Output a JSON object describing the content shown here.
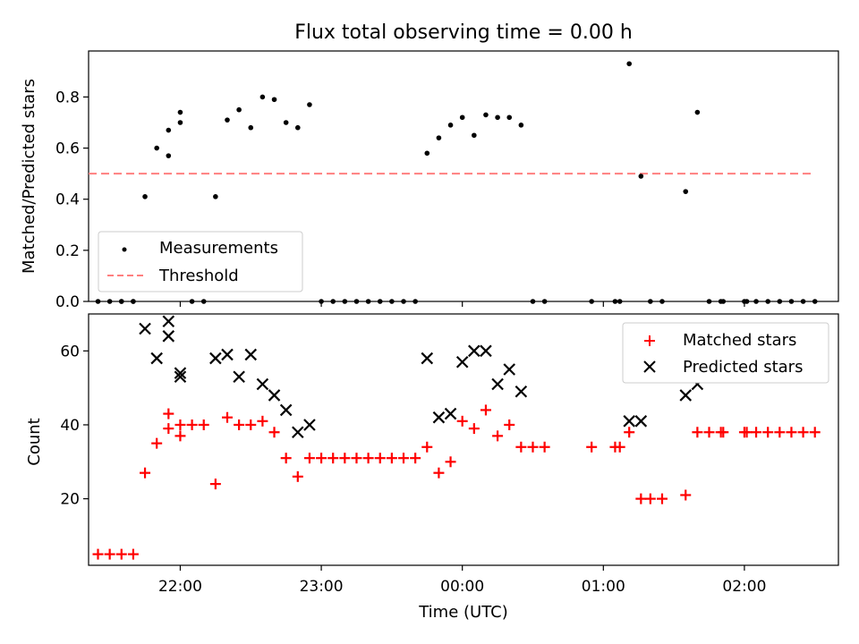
{
  "chart_data": [
    {
      "type": "scatter",
      "title": "Flux total observing time = 0.00 h",
      "xlabel": "",
      "ylabel": "Matched/Predicted stars",
      "xlim": [
        "21:21",
        "02:40"
      ],
      "ylim": [
        0,
        0.98
      ],
      "yticks": [
        "0.0",
        "0.2",
        "0.4",
        "0.6",
        "0.8"
      ],
      "legend_position": "lower-left",
      "colors": {
        "measurements": "#000000",
        "threshold": "#ff7f7f"
      },
      "series": [
        {
          "name": "Measurements",
          "points": [
            [
              "21:25",
              0.0
            ],
            [
              "21:30",
              0.0
            ],
            [
              "21:35",
              0.0
            ],
            [
              "21:40",
              0.0
            ],
            [
              "21:35",
              0.0
            ],
            [
              "21:40",
              0.0
            ],
            [
              "21:45",
              0.41
            ],
            [
              "21:50",
              0.6
            ],
            [
              "21:55",
              0.57
            ],
            [
              "22:00",
              0.7
            ],
            [
              "21:55",
              0.67
            ],
            [
              "22:00",
              0.74
            ],
            [
              "22:05",
              0.0
            ],
            [
              "22:10",
              0.0
            ],
            [
              "22:15",
              0.41
            ],
            [
              "22:20",
              0.71
            ],
            [
              "22:25",
              0.75
            ],
            [
              "22:30",
              0.68
            ],
            [
              "22:35",
              0.8
            ],
            [
              "22:40",
              0.79
            ],
            [
              "22:45",
              0.7
            ],
            [
              "22:50",
              0.68
            ],
            [
              "22:55",
              0.77
            ],
            [
              "23:00",
              0.0
            ],
            [
              "23:05",
              0.0
            ],
            [
              "23:10",
              0.0
            ],
            [
              "23:15",
              0.0
            ],
            [
              "23:20",
              0.0
            ],
            [
              "23:25",
              0.0
            ],
            [
              "23:30",
              0.0
            ],
            [
              "23:35",
              0.0
            ],
            [
              "23:40",
              0.0
            ],
            [
              "23:45",
              0.58
            ],
            [
              "23:50",
              0.64
            ],
            [
              "23:55",
              0.69
            ],
            [
              "00:00",
              0.72
            ],
            [
              "00:05",
              0.65
            ],
            [
              "00:10",
              0.73
            ],
            [
              "00:15",
              0.72
            ],
            [
              "00:20",
              0.72
            ],
            [
              "00:25",
              0.69
            ],
            [
              "00:30",
              0.0
            ],
            [
              "00:35",
              0.0
            ],
            [
              "00:55",
              0.0
            ],
            [
              "01:05",
              0.0
            ],
            [
              "01:07",
              0.0
            ],
            [
              "01:11",
              0.93
            ],
            [
              "01:16",
              0.49
            ],
            [
              "01:20",
              0.0
            ],
            [
              "01:25",
              0.0
            ],
            [
              "01:35",
              0.43
            ],
            [
              "01:40",
              0.74
            ],
            [
              "01:45",
              0.0
            ],
            [
              "01:50",
              0.0
            ],
            [
              "01:51",
              0.0
            ],
            [
              "02:00",
              0.0
            ],
            [
              "02:01",
              0.0
            ],
            [
              "02:05",
              0.0
            ],
            [
              "02:10",
              0.0
            ],
            [
              "02:15",
              0.0
            ],
            [
              "02:20",
              0.0
            ],
            [
              "02:25",
              0.0
            ],
            [
              "02:30",
              0.0
            ]
          ]
        },
        {
          "name": "Threshold",
          "style": "dashed",
          "points": [
            [
              "21:21",
              0.5
            ],
            [
              "02:30",
              0.5
            ]
          ]
        }
      ]
    },
    {
      "type": "scatter",
      "title": "",
      "xlabel": "Time (UTC)",
      "ylabel": "Count",
      "xlim": [
        "21:21",
        "02:40"
      ],
      "ylim": [
        2,
        70
      ],
      "yticks": [
        "20",
        "40",
        "60"
      ],
      "xticks": [
        "22:00",
        "23:00",
        "00:00",
        "01:00",
        "02:00"
      ],
      "legend_position": "top-right",
      "colors": {
        "matched": "#ff0000",
        "predicted": "#000000"
      },
      "series": [
        {
          "name": "Matched stars",
          "marker": "plus",
          "points": [
            [
              "21:25",
              5
            ],
            [
              "21:30",
              5
            ],
            [
              "21:35",
              5
            ],
            [
              "21:40",
              5
            ],
            [
              "21:45",
              27
            ],
            [
              "21:50",
              35
            ],
            [
              "21:55",
              39
            ],
            [
              "22:00",
              37
            ],
            [
              "21:55",
              43
            ],
            [
              "22:00",
              40
            ],
            [
              "22:05",
              40
            ],
            [
              "22:10",
              40
            ],
            [
              "22:15",
              24
            ],
            [
              "22:20",
              42
            ],
            [
              "22:25",
              40
            ],
            [
              "22:30",
              40
            ],
            [
              "22:35",
              41
            ],
            [
              "22:40",
              38
            ],
            [
              "22:45",
              31
            ],
            [
              "22:50",
              26
            ],
            [
              "22:55",
              31
            ],
            [
              "23:00",
              31
            ],
            [
              "23:05",
              31
            ],
            [
              "23:10",
              31
            ],
            [
              "23:15",
              31
            ],
            [
              "23:20",
              31
            ],
            [
              "23:25",
              31
            ],
            [
              "23:30",
              31
            ],
            [
              "23:35",
              31
            ],
            [
              "23:40",
              31
            ],
            [
              "23:45",
              34
            ],
            [
              "23:50",
              27
            ],
            [
              "23:55",
              30
            ],
            [
              "00:00",
              41
            ],
            [
              "00:05",
              39
            ],
            [
              "00:10",
              44
            ],
            [
              "00:15",
              37
            ],
            [
              "00:20",
              40
            ],
            [
              "00:25",
              34
            ],
            [
              "00:30",
              34
            ],
            [
              "00:35",
              34
            ],
            [
              "00:55",
              34
            ],
            [
              "01:05",
              34
            ],
            [
              "01:07",
              34
            ],
            [
              "01:11",
              38
            ],
            [
              "01:16",
              20
            ],
            [
              "01:20",
              20
            ],
            [
              "01:25",
              20
            ],
            [
              "01:35",
              21
            ],
            [
              "01:40",
              38
            ],
            [
              "01:45",
              38
            ],
            [
              "01:50",
              38
            ],
            [
              "01:51",
              38
            ],
            [
              "02:00",
              38
            ],
            [
              "02:01",
              38
            ],
            [
              "02:05",
              38
            ],
            [
              "02:10",
              38
            ],
            [
              "02:15",
              38
            ],
            [
              "02:20",
              38
            ],
            [
              "02:25",
              38
            ],
            [
              "02:30",
              38
            ]
          ]
        },
        {
          "name": "Predicted stars",
          "marker": "x",
          "points": [
            [
              "21:45",
              66
            ],
            [
              "21:50",
              58
            ],
            [
              "21:55",
              68
            ],
            [
              "22:00",
              53
            ],
            [
              "21:55",
              64
            ],
            [
              "22:00",
              54
            ],
            [
              "22:15",
              58
            ],
            [
              "22:20",
              59
            ],
            [
              "22:25",
              53
            ],
            [
              "22:30",
              59
            ],
            [
              "22:35",
              51
            ],
            [
              "22:40",
              48
            ],
            [
              "22:45",
              44
            ],
            [
              "22:50",
              38
            ],
            [
              "22:55",
              40
            ],
            [
              "23:45",
              58
            ],
            [
              "23:50",
              42
            ],
            [
              "23:55",
              43
            ],
            [
              "00:00",
              57
            ],
            [
              "00:05",
              60
            ],
            [
              "00:10",
              60
            ],
            [
              "00:15",
              51
            ],
            [
              "00:20",
              55
            ],
            [
              "00:25",
              49
            ],
            [
              "01:11",
              41
            ],
            [
              "01:16",
              41
            ],
            [
              "01:35",
              48
            ],
            [
              "01:40",
              51
            ]
          ]
        }
      ]
    }
  ]
}
